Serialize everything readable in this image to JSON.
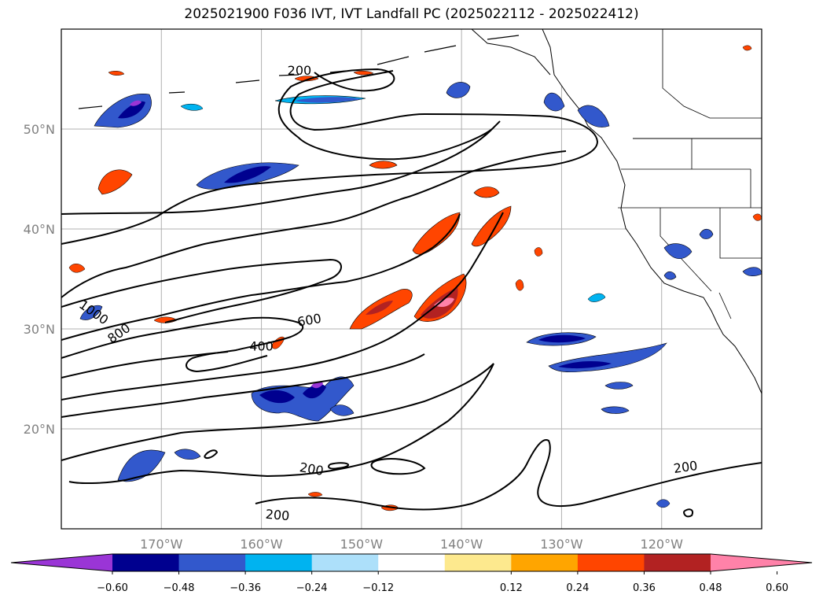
{
  "title": "2025021900 F036 IVT, IVT Landfall PC (2025022112 - 2025022412)",
  "map": {
    "lon_range": [
      -180,
      -110
    ],
    "lat_range": [
      10,
      60
    ],
    "lon_ticks": [
      {
        "lon": -170,
        "label": "170°W"
      },
      {
        "lon": -160,
        "label": "160°W"
      },
      {
        "lon": -150,
        "label": "150°W"
      },
      {
        "lon": -140,
        "label": "140°W"
      },
      {
        "lon": -130,
        "label": "130°W"
      },
      {
        "lon": -120,
        "label": "120°W"
      }
    ],
    "lat_ticks": [
      {
        "lat": 50,
        "label": "50°N"
      },
      {
        "lat": 40,
        "label": "40°N"
      },
      {
        "lat": 30,
        "label": "30°N"
      },
      {
        "lat": 20,
        "label": "20°N"
      }
    ],
    "grid": true,
    "contour_labels": [
      {
        "text": "200",
        "lon": -156.2,
        "lat": 55.8,
        "rot": 0
      },
      {
        "text": "1000",
        "lon": -176.8,
        "lat": 31.6,
        "rot": 35
      },
      {
        "text": "800",
        "lon": -174.2,
        "lat": 29.5,
        "rot": -35
      },
      {
        "text": "600",
        "lon": -155.2,
        "lat": 30.8,
        "rot": -10
      },
      {
        "text": "400",
        "lon": -160.0,
        "lat": 28.2,
        "rot": 0
      },
      {
        "text": "200",
        "lon": -155.0,
        "lat": 15.9,
        "rot": 10
      },
      {
        "text": "200",
        "lon": -158.4,
        "lat": 11.3,
        "rot": 5
      },
      {
        "text": "200",
        "lon": -117.6,
        "lat": 16.1,
        "rot": -8
      }
    ]
  },
  "colorbar": {
    "ticks": [
      "−0.60",
      "−0.48",
      "−0.36",
      "−0.24",
      "−0.12",
      "0.12",
      "0.24",
      "0.36",
      "0.48",
      "0.60"
    ],
    "colors": [
      "#9a35d6",
      "#00008f",
      "#3258cc",
      "#00b3f0",
      "#ade0fa",
      "#ffffff",
      "#fde98e",
      "#ffa500",
      "#ff4500",
      "#b22222",
      "#ff82a9"
    ],
    "extend": "both"
  }
}
